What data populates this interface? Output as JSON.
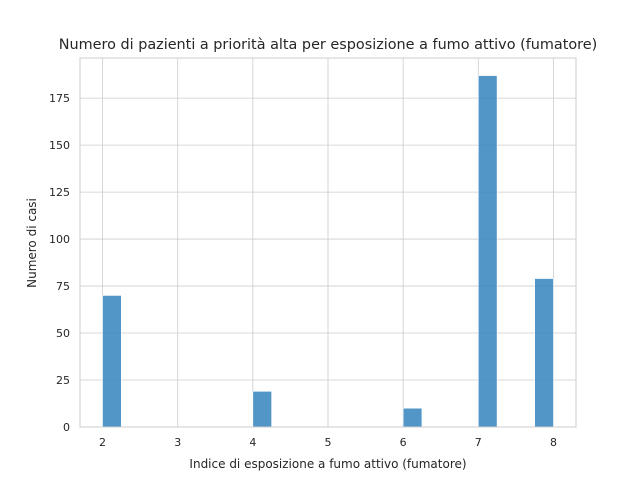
{
  "chart_data": {
    "type": "bar",
    "title": "Numero di pazienti a priorità alta per esposizione a fumo attivo (fumatore)",
    "xlabel": "Indice di esposizione a fumo attivo (fumatore)",
    "ylabel": "Numero di casi",
    "x_ticks": [
      2,
      3,
      4,
      5,
      6,
      7,
      8
    ],
    "y_ticks": [
      0,
      25,
      50,
      75,
      100,
      125,
      150,
      175
    ],
    "xlim": [
      1.7,
      8.3
    ],
    "ylim": [
      0,
      196.35
    ],
    "bin_width": 0.25,
    "bins": [
      {
        "x_start": 2.0,
        "x_end": 2.25,
        "value": 70
      },
      {
        "x_start": 4.0,
        "x_end": 4.25,
        "value": 19
      },
      {
        "x_start": 6.0,
        "x_end": 6.25,
        "value": 10
      },
      {
        "x_start": 7.0,
        "x_end": 7.25,
        "value": 187
      },
      {
        "x_start": 7.75,
        "x_end": 8.0,
        "value": 79
      }
    ],
    "grid": true,
    "legend": "none",
    "colors": {
      "bar": "#3a87c0",
      "grid": "#cccccc",
      "text": "#262626",
      "background": "#ffffff"
    }
  }
}
